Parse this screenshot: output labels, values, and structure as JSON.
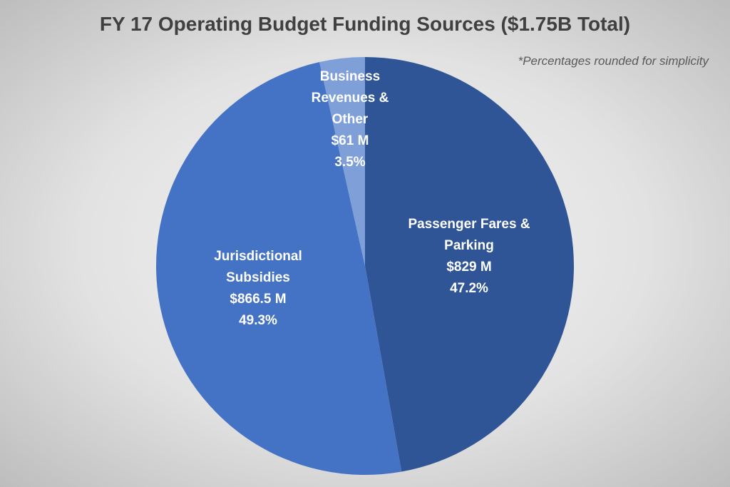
{
  "chart_data": {
    "type": "pie",
    "title": "FY 17 Operating Budget Funding Sources ($1.75B Total)",
    "subtitle": "*Percentages rounded for simplicity",
    "categories": [
      "Passenger Fares & Parking",
      "Jurisdictional Subsidies",
      "Business Revenues & Other"
    ],
    "values": [
      47.2,
      49.3,
      3.5
    ],
    "value_labels": [
      "47.2%",
      "49.3%",
      "3.5%"
    ],
    "amount_labels": [
      "$829 M",
      "$866.5 M",
      "$61 M"
    ],
    "colors": [
      "#2f5597",
      "#4472c4",
      "#7f9fd9"
    ]
  }
}
